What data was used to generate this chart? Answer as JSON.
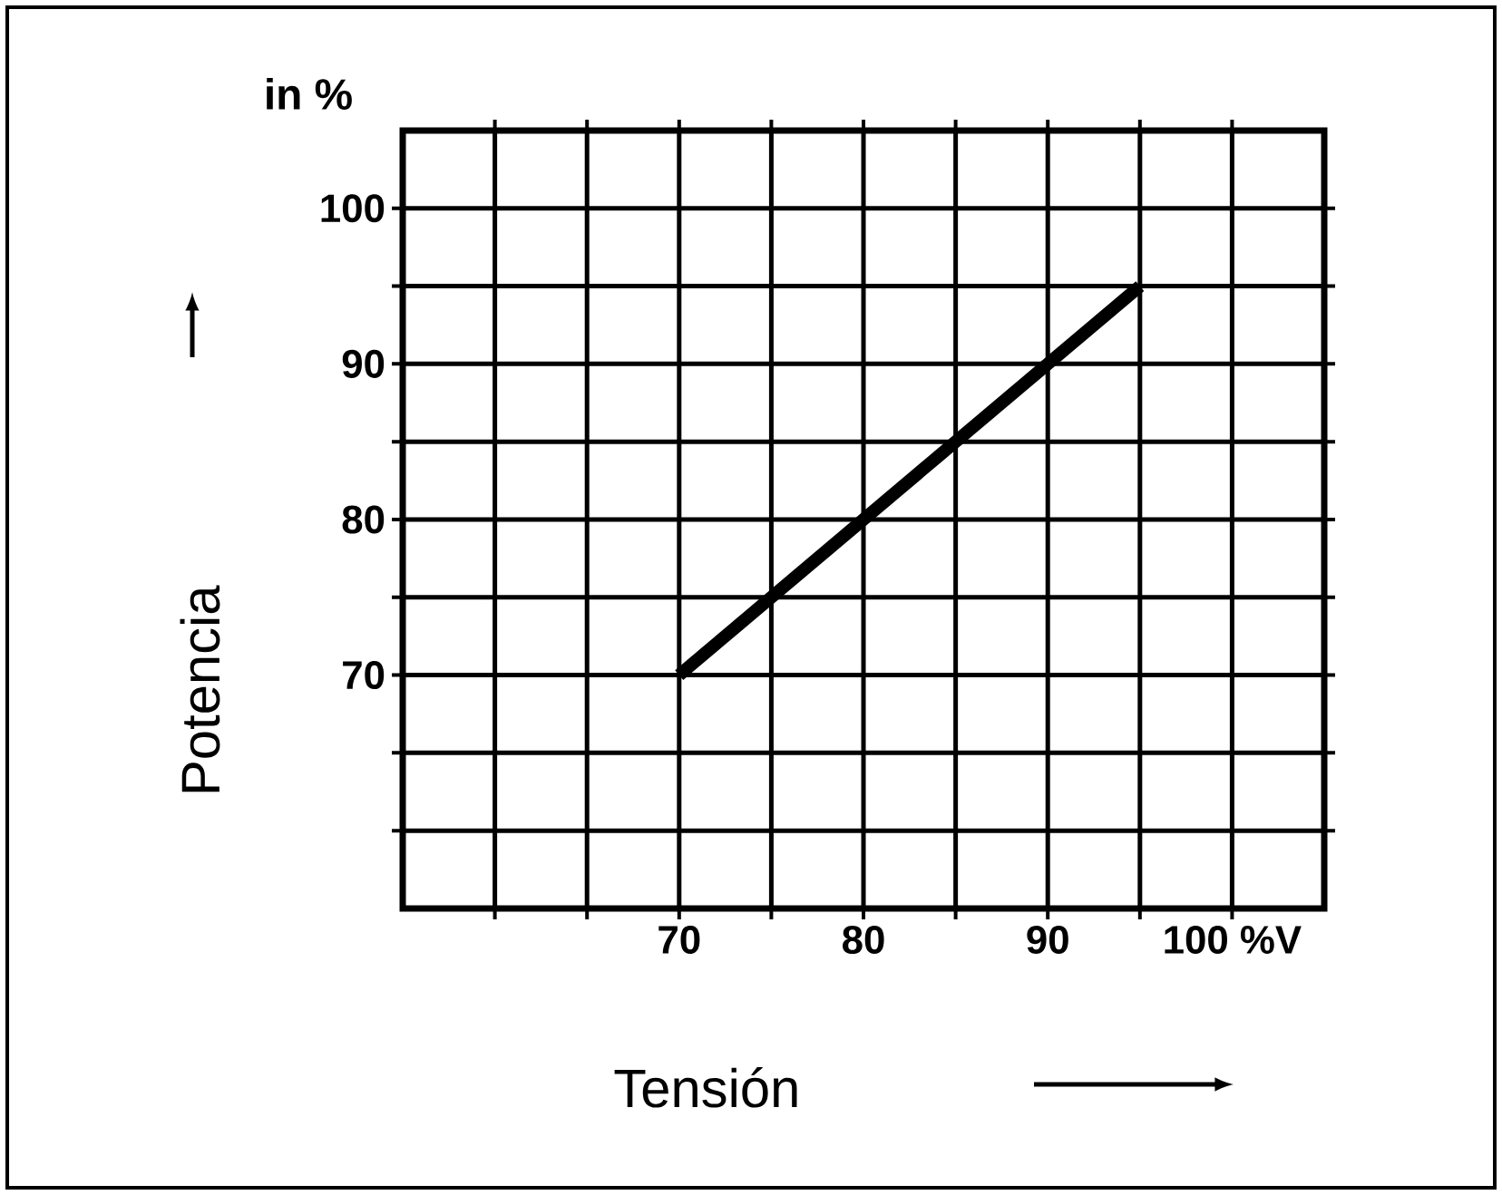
{
  "chart_data": {
    "type": "line",
    "xlabel": "Tensión",
    "ylabel": "Potencia",
    "annotations": [
      "in %"
    ],
    "x": [
      70,
      95
    ],
    "series": [
      {
        "color": "#000000",
        "values": [
          70,
          95
        ]
      }
    ],
    "xlim": [
      55,
      105
    ],
    "ylim": [
      55,
      105
    ],
    "xticks": [
      {
        "value": 60,
        "label": null
      },
      {
        "value": 65,
        "label": null
      },
      70,
      {
        "value": 75,
        "label": null
      },
      80,
      {
        "value": 85,
        "label": null
      },
      90,
      {
        "value": 95,
        "label": null
      },
      {
        "value": 100,
        "label": "100 %V"
      }
    ],
    "yticks": [
      {
        "value": 60,
        "label": null
      },
      {
        "value": 65,
        "label": null
      },
      70,
      {
        "value": 75,
        "label": null
      },
      80,
      {
        "value": 85,
        "label": null
      },
      90,
      {
        "value": 95,
        "label": null
      },
      100
    ],
    "grid": true,
    "line_style": "solid"
  }
}
